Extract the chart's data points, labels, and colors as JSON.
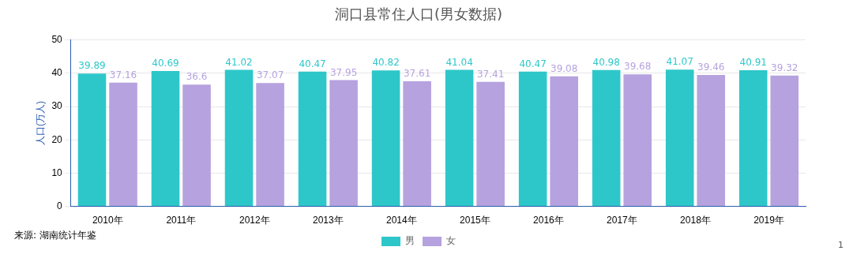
{
  "chart_data": {
    "type": "bar",
    "title": "洞口县常住人口(男女数据)",
    "ylabel": "人口(万人)",
    "categories": [
      "2010年",
      "2011年",
      "2012年",
      "2013年",
      "2014年",
      "2015年",
      "2016年",
      "2017年",
      "2018年",
      "2019年"
    ],
    "series": [
      {
        "name": "男",
        "color": "#2ec7c9",
        "values": [
          39.89,
          40.69,
          41.02,
          40.47,
          40.82,
          41.04,
          40.47,
          40.98,
          41.07,
          40.91
        ]
      },
      {
        "name": "女",
        "color": "#b6a2de",
        "values": [
          37.16,
          36.6,
          37.07,
          37.95,
          37.61,
          37.41,
          39.08,
          39.68,
          39.46,
          39.32
        ]
      }
    ],
    "ylim": [
      0,
      50
    ],
    "yticks": [
      0,
      10,
      20,
      30,
      40,
      50
    ],
    "grid": "y",
    "legend": "bottom",
    "data_labels": true,
    "annotations": [
      "来源: 湖南统计年鉴",
      "1"
    ]
  }
}
